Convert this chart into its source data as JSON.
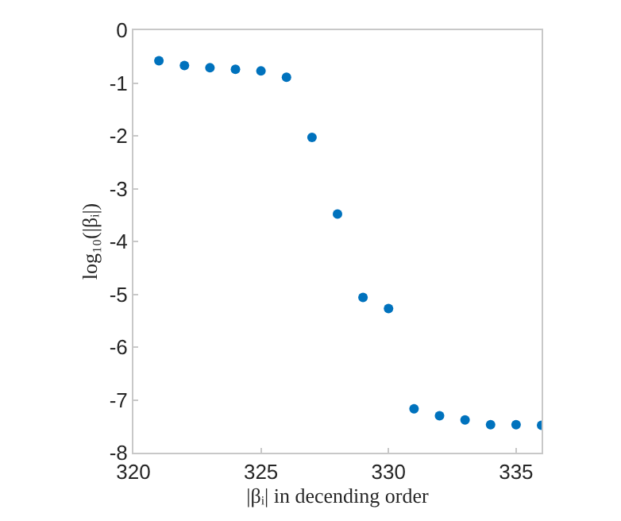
{
  "chart_data": {
    "type": "scatter",
    "xlabel": "|βᵢ| in decending order",
    "ylabel": "log₁₀(|βᵢ|)",
    "x": [
      321,
      322,
      323,
      324,
      325,
      326,
      327,
      328,
      329,
      330,
      331,
      332,
      333,
      334,
      335,
      336
    ],
    "series": [
      {
        "color": "#0072bd",
        "values": [
          -0.58,
          -0.67,
          -0.71,
          -0.74,
          -0.77,
          -0.89,
          -2.03,
          -3.48,
          -5.06,
          -5.27,
          -7.17,
          -7.3,
          -7.38,
          -7.47,
          -7.47,
          -7.48
        ]
      }
    ],
    "xlim": [
      320,
      336
    ],
    "xticks": [
      320,
      325,
      330,
      335
    ],
    "ylim": [
      -8,
      0
    ],
    "yticks": [
      -8,
      -7,
      -6,
      -5,
      -4,
      -3,
      -2,
      -1,
      0
    ],
    "marker": "circle"
  }
}
